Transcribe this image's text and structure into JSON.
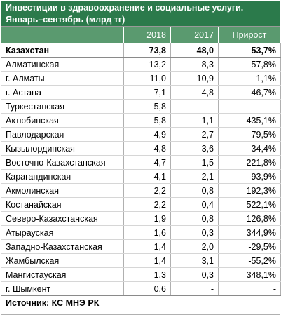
{
  "title": {
    "line1": "Инвестиции в здравоохранение и социальные услуги.",
    "line2": "Январь–сентябрь (млрд тг)"
  },
  "columns": [
    "",
    "2018",
    "2017",
    "Прирост"
  ],
  "rows": [
    {
      "name": "Казахстан",
      "y2018": "73,8",
      "y2017": "48,0",
      "growth": "53,7%"
    },
    {
      "name": "Алматинская",
      "y2018": "13,2",
      "y2017": "8,3",
      "growth": "57,8%"
    },
    {
      "name": "г. Алматы",
      "y2018": "11,0",
      "y2017": "10,9",
      "growth": "1,1%"
    },
    {
      "name": "г. Астана",
      "y2018": "7,1",
      "y2017": "4,8",
      "growth": "46,7%"
    },
    {
      "name": "Туркестанская",
      "y2018": "5,8",
      "y2017": "-",
      "growth": "-"
    },
    {
      "name": "Актюбинская",
      "y2018": "5,8",
      "y2017": "1,1",
      "growth": "435,1%"
    },
    {
      "name": "Павлодарская",
      "y2018": "4,9",
      "y2017": "2,7",
      "growth": "79,5%"
    },
    {
      "name": "Кызылординская",
      "y2018": "4,8",
      "y2017": "3,6",
      "growth": "34,4%"
    },
    {
      "name": "Восточно-Казахстанская",
      "y2018": "4,7",
      "y2017": "1,5",
      "growth": "221,8%"
    },
    {
      "name": "Карагандинская",
      "y2018": "4,1",
      "y2017": "2,1",
      "growth": "93,9%"
    },
    {
      "name": "Акмолинская",
      "y2018": "2,2",
      "y2017": "0,8",
      "growth": "192,3%"
    },
    {
      "name": "Костанайская",
      "y2018": "2,2",
      "y2017": "0,4",
      "growth": "522,1%"
    },
    {
      "name": "Северо-Казахстанская",
      "y2018": "1,9",
      "y2017": "0,8",
      "growth": "126,8%"
    },
    {
      "name": "Атырауская",
      "y2018": "1,6",
      "y2017": "0,3",
      "growth": "344,9%"
    },
    {
      "name": "Западно-Казахстанская",
      "y2018": "1,4",
      "y2017": "2,0",
      "growth": "-29,5%"
    },
    {
      "name": "Жамбылская",
      "y2018": "1,4",
      "y2017": "3,1",
      "growth": "-55,2%"
    },
    {
      "name": "Мангистауская",
      "y2018": "1,3",
      "y2017": "0,3",
      "growth": "348,1%"
    },
    {
      "name": "г. Шымкент",
      "y2018": "0,6",
      "y2017": "-",
      "growth": "-"
    }
  ],
  "source": "Источник: КС МНЭ РК",
  "colors": {
    "title_bg": "#2b7a4b",
    "header_bg": "#5a9a6f",
    "text": "#000000"
  }
}
